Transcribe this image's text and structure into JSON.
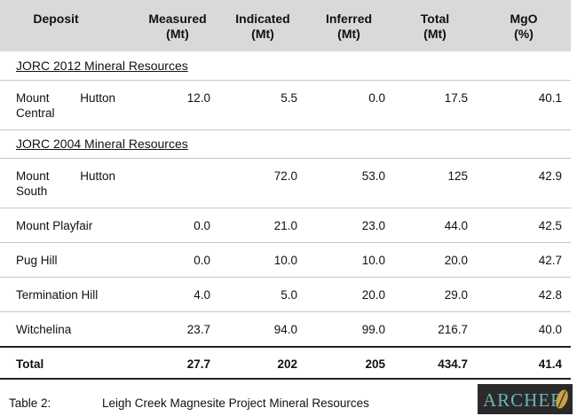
{
  "table": {
    "columns": [
      {
        "label": "Deposit"
      },
      {
        "label": "Measured",
        "unit": "(Mt)"
      },
      {
        "label": "Indicated",
        "unit": "(Mt)"
      },
      {
        "label": "Inferred",
        "unit": "(Mt)"
      },
      {
        "label": "Total",
        "unit": "(Mt)"
      },
      {
        "label": "MgO",
        "unit": "(%)"
      }
    ],
    "sections": [
      {
        "title": "JORC 2012 Mineral Resources",
        "rows": [
          [
            "Mount Hutton Central",
            "12.0",
            "5.5",
            "0.0",
            "17.5",
            "40.1"
          ]
        ]
      },
      {
        "title": "JORC 2004 Mineral Resources",
        "rows": [
          [
            "Mount Hutton South",
            null,
            "72.0",
            "53.0",
            "125",
            "42.9"
          ],
          [
            "Mount Playfair",
            "0.0",
            "21.0",
            "23.0",
            "44.0",
            "42.5"
          ],
          [
            "Pug Hill",
            "0.0",
            "10.0",
            "10.0",
            "20.0",
            "42.7"
          ],
          [
            "Termination Hill",
            "4.0",
            "5.0",
            "20.0",
            "29.0",
            "42.8"
          ],
          [
            "Witchelina",
            "23.7",
            "94.0",
            "99.0",
            "216.7",
            "40.0"
          ]
        ]
      }
    ],
    "total": [
      "Total",
      "27.7",
      "202",
      "205",
      "434.7",
      "41.4"
    ]
  },
  "caption": {
    "label": "Table 2:",
    "text": "Leigh Creek Magnesite Project Mineral Resources"
  },
  "logo": {
    "text": "ARCHER"
  }
}
